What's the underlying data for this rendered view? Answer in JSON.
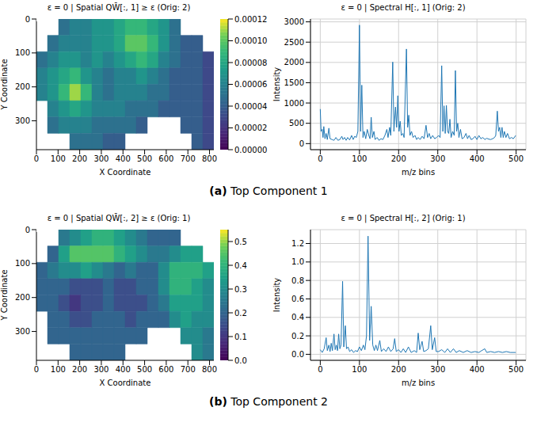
{
  "chart_data": [
    {
      "type": "heatmap",
      "title": "ε = 0 | Spatial QW̄[:, 1] ≥ ε (Orig: 2)",
      "x_label": "X Coordinate",
      "y_label": "Y Coordinate",
      "xlim": [
        0,
        820
      ],
      "ylim": [
        0,
        385
      ],
      "xticks": [
        0,
        100,
        200,
        300,
        400,
        500,
        600,
        700,
        800
      ],
      "yticks": [
        0,
        100,
        200,
        300
      ],
      "grid": false,
      "cells": [
        [
          null,
          null,
          5e-05,
          6e-05,
          6e-05,
          7e-05,
          7e-05,
          8e-05,
          9e-05,
          9e-05,
          8e-05,
          7e-05,
          5e-05,
          null,
          null,
          null
        ],
        [
          null,
          5e-05,
          6e-05,
          6e-05,
          6e-05,
          7e-05,
          7e-05,
          8e-05,
          0.0001,
          0.0001,
          9e-05,
          7e-05,
          5e-05,
          4e-05,
          4e-05,
          null
        ],
        [
          5e-05,
          6e-05,
          7e-05,
          7e-05,
          6e-05,
          7e-05,
          6e-05,
          7e-05,
          8e-05,
          9e-05,
          8e-05,
          6e-05,
          5e-05,
          4e-05,
          4e-05,
          3e-05
        ],
        [
          6e-05,
          7e-05,
          8e-05,
          9e-05,
          7e-05,
          6e-05,
          5e-05,
          6e-05,
          6e-05,
          7e-05,
          6e-05,
          5e-05,
          4e-05,
          4e-05,
          4e-05,
          3e-05
        ],
        [
          6e-05,
          7e-05,
          9e-05,
          0.00011,
          9e-05,
          6e-05,
          5e-05,
          6e-05,
          6e-05,
          6e-05,
          5e-05,
          5e-05,
          4e-05,
          4e-05,
          4e-05,
          3e-05
        ],
        [
          null,
          6e-05,
          7e-05,
          8e-05,
          7e-05,
          6e-05,
          6e-05,
          6e-05,
          5e-05,
          5e-05,
          5e-05,
          4e-05,
          4e-05,
          4e-05,
          4e-05,
          3e-05
        ],
        [
          null,
          5e-05,
          6e-05,
          6e-05,
          6e-05,
          5e-05,
          5e-05,
          5e-05,
          5e-05,
          4e-05,
          null,
          null,
          null,
          4e-05,
          4e-05,
          3e-05
        ],
        [
          null,
          null,
          null,
          5e-05,
          5e-05,
          5e-05,
          4e-05,
          4e-05,
          null,
          null,
          null,
          null,
          null,
          null,
          4e-05,
          3e-05
        ]
      ],
      "colorbar": {
        "range": [
          0,
          0.00012
        ],
        "ticks": [
          {
            "value": 0,
            "label": "0.00000"
          },
          {
            "value": 2e-05,
            "label": "0.00002"
          },
          {
            "value": 4e-05,
            "label": "0.00004"
          },
          {
            "value": 6e-05,
            "label": "0.00006"
          },
          {
            "value": 8e-05,
            "label": "0.00008"
          },
          {
            "value": 0.0001,
            "label": "0.00010"
          },
          {
            "value": 0.00012,
            "label": "0.00012"
          }
        ]
      }
    },
    {
      "type": "line",
      "title": "ε = 0 | Spectral H[:, 1] (Orig: 2)",
      "x_label": "m/z bins",
      "y_label": "Intensity",
      "color": "#1f77b4",
      "grid": true,
      "xlim": [
        -25,
        525
      ],
      "ylim": [
        -150,
        3070
      ],
      "xticks": [
        0,
        100,
        200,
        300,
        400,
        500
      ],
      "yticks": [
        0,
        500,
        1000,
        1500,
        2000,
        2500,
        3000
      ],
      "x": [
        0,
        2,
        5,
        7,
        9,
        12,
        15,
        18,
        22,
        25,
        30,
        35,
        40,
        45,
        50,
        55,
        58,
        62,
        66,
        70,
        75,
        80,
        84,
        88,
        92,
        96,
        100,
        103,
        106,
        109,
        112,
        116,
        120,
        124,
        127,
        130,
        133,
        137,
        140,
        145,
        150,
        155,
        160,
        165,
        170,
        173,
        177,
        180,
        185,
        188,
        192,
        195,
        198,
        201,
        204,
        207,
        211,
        214,
        220,
        223,
        226,
        229,
        233,
        237,
        242,
        246,
        250,
        255,
        260,
        265,
        270,
        274,
        278,
        282,
        287,
        292,
        297,
        302,
        306,
        310,
        313,
        316,
        319,
        322,
        325,
        328,
        331,
        334,
        338,
        342,
        345,
        348,
        351,
        354,
        358,
        362,
        367,
        372,
        376,
        380,
        385,
        390,
        395,
        400,
        405,
        410,
        415,
        420,
        425,
        430,
        435,
        440,
        445,
        448,
        452,
        455,
        458,
        461,
        464,
        467,
        470,
        474,
        478,
        483,
        488,
        493,
        499
      ],
      "values": [
        850,
        300,
        350,
        150,
        420,
        120,
        250,
        100,
        380,
        120,
        100,
        80,
        150,
        80,
        100,
        180,
        100,
        150,
        80,
        150,
        90,
        200,
        100,
        180,
        150,
        300,
        2920,
        300,
        1440,
        150,
        300,
        120,
        350,
        200,
        120,
        650,
        150,
        300,
        100,
        150,
        80,
        120,
        100,
        200,
        350,
        150,
        400,
        200,
        2010,
        300,
        900,
        400,
        1180,
        300,
        550,
        200,
        250,
        150,
        2330,
        400,
        700,
        200,
        300,
        150,
        200,
        100,
        150,
        100,
        180,
        120,
        450,
        150,
        250,
        120,
        200,
        120,
        150,
        200,
        150,
        1920,
        300,
        930,
        250,
        940,
        300,
        250,
        600,
        150,
        300,
        200,
        1800,
        300,
        500,
        150,
        350,
        120,
        150,
        250,
        120,
        200,
        100,
        120,
        180,
        100,
        200,
        120,
        150,
        100,
        130,
        110,
        100,
        120,
        150,
        200,
        800,
        300,
        400,
        150,
        400,
        150,
        300,
        150,
        250,
        120,
        150,
        120,
        200
      ]
    },
    {
      "type": "heatmap",
      "title": "ε = 0 | Spatial QW̄[:, 2] ≥ ε (Orig: 1)",
      "x_label": "X Coordinate",
      "y_label": "Y Coordinate",
      "xlim": [
        0,
        820
      ],
      "ylim": [
        0,
        385
      ],
      "xticks": [
        0,
        100,
        200,
        300,
        400,
        500,
        600,
        700,
        800
      ],
      "yticks": [
        0,
        100,
        200,
        300
      ],
      "grid": false,
      "cells": [
        [
          null,
          null,
          0.25,
          0.3,
          0.35,
          0.4,
          0.4,
          0.35,
          0.3,
          0.25,
          0.2,
          0.2,
          0.2,
          null,
          null,
          null
        ],
        [
          null,
          0.2,
          0.35,
          0.45,
          0.45,
          0.45,
          0.45,
          0.4,
          0.35,
          0.3,
          0.25,
          0.25,
          0.3,
          0.35,
          0.35,
          null
        ],
        [
          0.2,
          0.25,
          0.3,
          0.3,
          0.35,
          0.3,
          0.25,
          0.2,
          0.25,
          0.2,
          0.2,
          0.3,
          0.4,
          0.4,
          0.4,
          0.35
        ],
        [
          0.2,
          0.2,
          0.2,
          0.15,
          0.15,
          0.15,
          0.2,
          0.15,
          0.15,
          0.2,
          0.2,
          0.3,
          0.4,
          0.4,
          0.35,
          0.3
        ],
        [
          0.2,
          0.2,
          0.15,
          0.1,
          0.15,
          0.15,
          0.2,
          0.15,
          0.15,
          0.15,
          0.2,
          0.25,
          0.35,
          0.35,
          0.35,
          0.3
        ],
        [
          null,
          0.2,
          0.2,
          0.15,
          0.15,
          0.2,
          0.2,
          0.2,
          0.15,
          0.2,
          0.2,
          0.2,
          0.3,
          0.35,
          0.3,
          0.3
        ],
        [
          null,
          0.2,
          0.2,
          0.2,
          0.2,
          0.2,
          0.2,
          0.2,
          0.2,
          0.2,
          null,
          null,
          null,
          0.3,
          0.3,
          0.25
        ],
        [
          null,
          null,
          null,
          0.2,
          0.2,
          0.2,
          0.2,
          0.2,
          null,
          null,
          null,
          null,
          null,
          null,
          0.3,
          0.25
        ]
      ],
      "colorbar": {
        "range": [
          0,
          0.55
        ],
        "ticks": [
          {
            "value": 0,
            "label": "0.0"
          },
          0.1,
          0.2,
          0.3,
          0.4,
          0.5
        ]
      }
    },
    {
      "type": "line",
      "title": "ε = 0 | Spectral H[:, 2] (Orig: 1)",
      "x_label": "m/z bins",
      "y_label": "Intensity",
      "color": "#1f77b4",
      "grid": true,
      "xlim": [
        -25,
        525
      ],
      "ylim": [
        -0.065,
        1.35
      ],
      "xticks": [
        0,
        100,
        200,
        300,
        400,
        500
      ],
      "yticks": [
        {
          "value": 0,
          "label": "0.0"
        },
        0.2,
        0.4,
        0.6,
        0.8,
        {
          "value": 1,
          "label": "1.0"
        },
        1.2
      ],
      "x": [
        0,
        5,
        10,
        15,
        18,
        22,
        25,
        28,
        31,
        35,
        38,
        41,
        44,
        47,
        50,
        53,
        57,
        60,
        64,
        67,
        71,
        75,
        80,
        85,
        90,
        95,
        100,
        105,
        110,
        114,
        118,
        122,
        126,
        130,
        134,
        138,
        142,
        146,
        152,
        156,
        162,
        168,
        174,
        180,
        186,
        190,
        194,
        200,
        206,
        212,
        218,
        225,
        232,
        240,
        246,
        250,
        254,
        260,
        264,
        270,
        276,
        282,
        286,
        292,
        296,
        302,
        310,
        318,
        325,
        332,
        340,
        347,
        355,
        365,
        375,
        385,
        395,
        405,
        412,
        420,
        425,
        435,
        445,
        455,
        465,
        475,
        485,
        499
      ],
      "values": [
        0.05,
        0.02,
        0.06,
        0.18,
        0.04,
        0.1,
        0.03,
        0.12,
        0.04,
        0.22,
        0.05,
        0.1,
        0.04,
        0.22,
        0.06,
        0.1,
        0.79,
        0.08,
        0.31,
        0.06,
        0.08,
        0.03,
        0.05,
        0.02,
        0.04,
        0.03,
        0.08,
        0.04,
        0.1,
        0.05,
        0.2,
        1.28,
        0.15,
        0.52,
        0.1,
        0.04,
        0.1,
        0.04,
        0.15,
        0.03,
        0.06,
        0.03,
        0.08,
        0.03,
        0.06,
        0.17,
        0.03,
        0.05,
        0.02,
        0.06,
        0.02,
        0.08,
        0.02,
        0.04,
        0.02,
        0.23,
        0.05,
        0.14,
        0.03,
        0.04,
        0.06,
        0.31,
        0.05,
        0.18,
        0.03,
        0.03,
        0.05,
        0.02,
        0.06,
        0.02,
        0.06,
        0.02,
        0.04,
        0.02,
        0.04,
        0.02,
        0.03,
        0.02,
        0.04,
        0.06,
        0.02,
        0.03,
        0.02,
        0.03,
        0.02,
        0.03,
        0.02,
        0.02
      ]
    }
  ],
  "captions": [
    {
      "label": "(a)",
      "text": "Top Component 1"
    },
    {
      "label": "(b)",
      "text": "Top Component 2"
    }
  ]
}
